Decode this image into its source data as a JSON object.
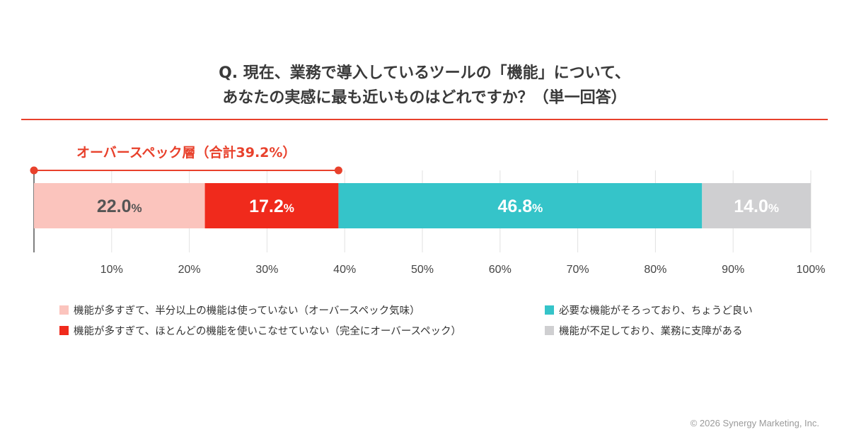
{
  "title_line1": "Q. 現在、業務で導入しているツールの「機能」について、",
  "title_line2": "あなたの実感に最も近いものはどれですか？（単一回答）",
  "chart_data": {
    "type": "bar",
    "orientation": "horizontal-stacked",
    "xlim": [
      0,
      100
    ],
    "ticks": [
      "10%",
      "20%",
      "30%",
      "40%",
      "50%",
      "60%",
      "70%",
      "80%",
      "90%",
      "100%"
    ],
    "tick_values": [
      10,
      20,
      30,
      40,
      50,
      60,
      70,
      80,
      90,
      100
    ],
    "grid": true,
    "legend_position": "bottom",
    "series": [
      {
        "name": "機能が多すぎて、半分以上の機能は使っていない（オーバースペック気味）",
        "value": 22.0,
        "label_num": "22.0",
        "label_unit": "%",
        "color": "#fbc4bd",
        "text_color": "#555555"
      },
      {
        "name": "機能が多すぎて、ほとんどの機能を使いこなせていない（完全にオーバースペック）",
        "value": 17.2,
        "label_num": "17.2",
        "label_unit": "%",
        "color": "#f02a1c",
        "text_color": "#ffffff"
      },
      {
        "name": "必要な機能がそろっており、ちょうど良い",
        "value": 46.8,
        "label_num": "46.8",
        "label_unit": "%",
        "color": "#35c4c9",
        "text_color": "#ffffff"
      },
      {
        "name": "機能が不足しており、業務に支障がある",
        "value": 14.0,
        "label_num": "14.0",
        "label_unit": "%",
        "color": "#cfcfd1",
        "text_color": "#ffffff"
      }
    ],
    "annotation": {
      "label": "オーバースペック層（合計39.2%）",
      "from": 0,
      "to": 39.2,
      "color": "#e8412c"
    }
  },
  "copyright": "© 2026 Synergy Marketing, Inc."
}
